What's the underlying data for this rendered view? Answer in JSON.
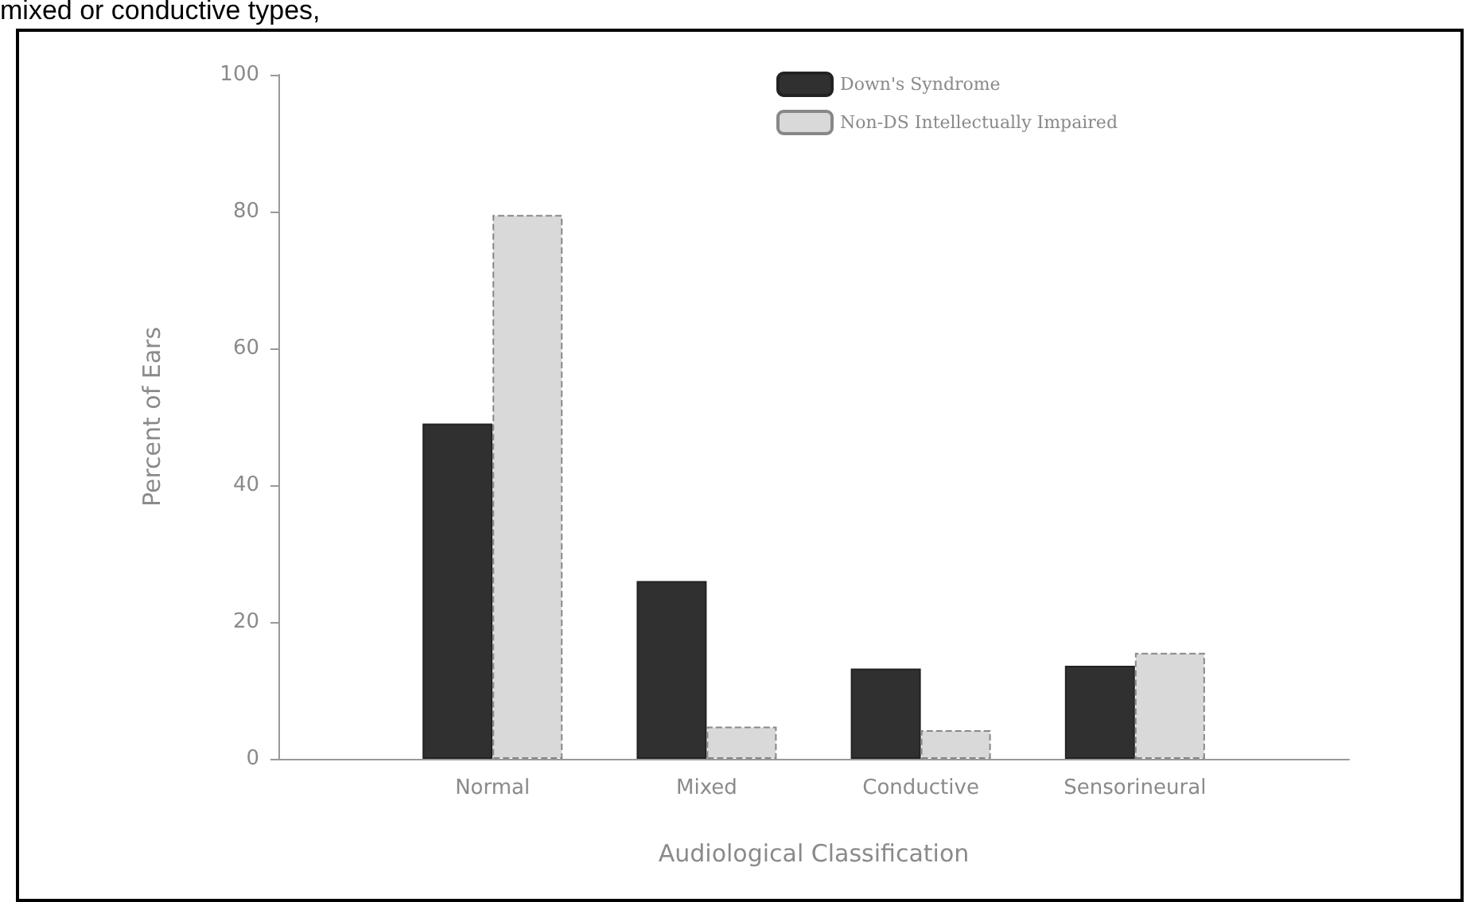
{
  "chart_data": {
    "type": "bar",
    "xlabel": "Audiological Classification",
    "ylabel": "Percent of Ears",
    "annotations": [
      "mixed or conductive types,"
    ],
    "categories": [
      "Normal",
      "Mixed",
      "Conductive",
      "Sensorineural"
    ],
    "series": [
      {
        "name": "Down's Syndrome",
        "color": "#303030",
        "values": [
          49,
          26,
          13.2,
          13.6
        ]
      },
      {
        "name": "Non-DS Intellectually Impaired",
        "color": "#d9d9d9",
        "values": [
          79.5,
          4.7,
          4.2,
          15.5
        ]
      }
    ],
    "ylim": [
      0,
      100
    ],
    "yticks": [
      0,
      20,
      40,
      60,
      80,
      100
    ],
    "grid": false,
    "legend": "top right"
  }
}
